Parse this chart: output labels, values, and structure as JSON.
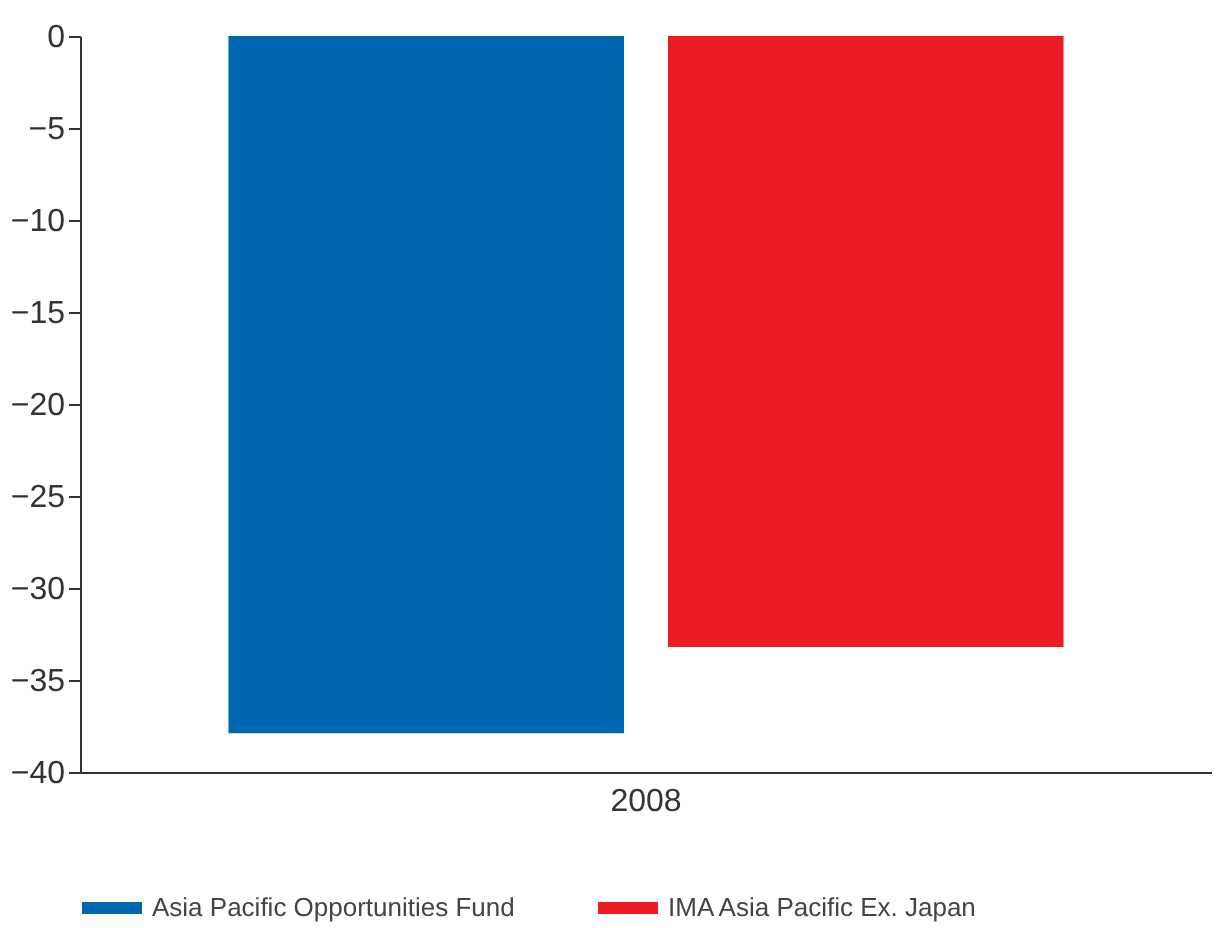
{
  "chart_data": {
    "type": "bar",
    "categories": [
      "2008"
    ],
    "series": [
      {
        "name": "Asia Pacific Opportunities Fund",
        "color": "#0067b1",
        "values": [
          -37.9
        ]
      },
      {
        "name": "IMA Asia Pacific Ex. Japan",
        "color": "#ed1c24",
        "values": [
          -33.2
        ]
      }
    ],
    "ylim": [
      -40,
      0
    ],
    "yticks": [
      0,
      -5,
      -10,
      -15,
      -20,
      -25,
      -30,
      -35,
      -40
    ],
    "grid": false,
    "legend": "bottom"
  }
}
